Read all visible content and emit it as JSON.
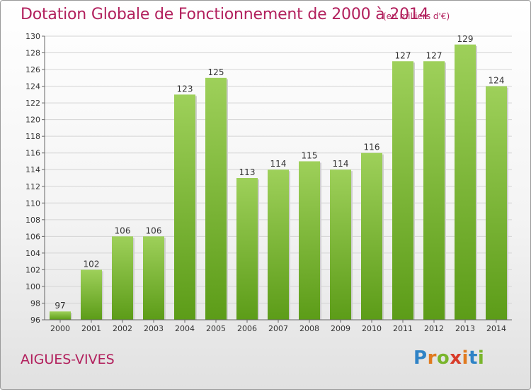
{
  "title": "Dotation Globale de Fonctionnement de 2000 à 2014",
  "unit": "(en milliers d'€)",
  "commune": "AIGUES-VIVES",
  "logo": {
    "letters": [
      "P",
      "r",
      "o",
      "x",
      "i",
      "t",
      "i"
    ],
    "colors": [
      "#2f83c6",
      "#e07a1f",
      "#79b52c",
      "#d83c2a",
      "#e07a1f",
      "#2f83c6",
      "#79b52c"
    ]
  },
  "colors": {
    "bar_top": "#9ed05a",
    "bar_bottom": "#5c9c18",
    "accent_text": "#b2205d"
  },
  "chart_data": {
    "type": "bar",
    "categories": [
      "2000",
      "2001",
      "2002",
      "2003",
      "2004",
      "2005",
      "2006",
      "2007",
      "2008",
      "2009",
      "2010",
      "2011",
      "2012",
      "2013",
      "2014"
    ],
    "values": [
      97,
      102,
      106,
      106,
      123,
      125,
      113,
      114,
      115,
      114,
      116,
      127,
      127,
      129,
      124
    ],
    "ylim": [
      96,
      130
    ],
    "yticks": [
      96,
      98,
      100,
      102,
      104,
      106,
      108,
      110,
      112,
      114,
      116,
      118,
      120,
      122,
      124,
      126,
      128,
      130
    ],
    "grid": true,
    "xlabel": "",
    "ylabel": ""
  }
}
